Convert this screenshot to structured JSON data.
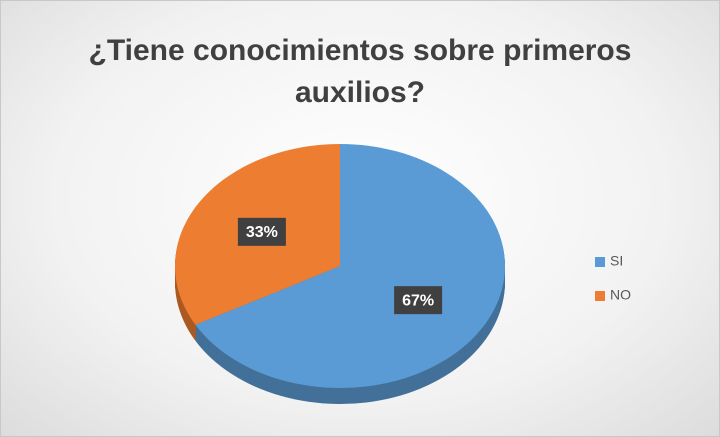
{
  "chart_data": {
    "type": "pie",
    "title": "¿Tiene conocimientos sobre primeros auxilios?",
    "categories": [
      "SI",
      "NO"
    ],
    "values": [
      67,
      33
    ],
    "value_labels": [
      "67%",
      "33%"
    ],
    "colors": [
      "#5b9bd5",
      "#ed7d31"
    ],
    "legend": "right"
  }
}
